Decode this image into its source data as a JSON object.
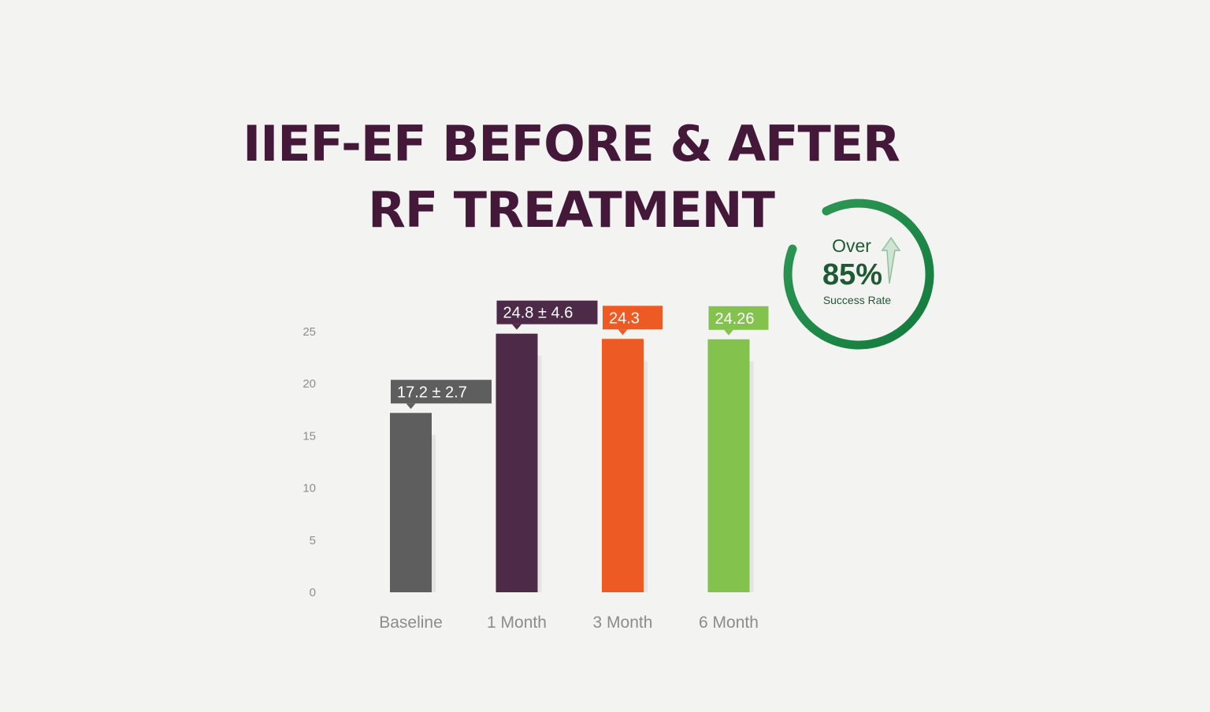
{
  "title_line1": "IIEF-EF BEFORE & AFTER",
  "title_line2": "RF TREATMENT",
  "badge": {
    "over": "Over",
    "percent": "85%",
    "caption": "Success Rate",
    "ring_color": "#1f8a4a",
    "arrow_icon": "up-arrow-icon"
  },
  "chart_data": {
    "type": "bar",
    "title": "IIEF-EF BEFORE & AFTER RF TREATMENT",
    "xlabel": "",
    "ylabel": "",
    "ylim": [
      0,
      25
    ],
    "yticks": [
      0,
      5,
      10,
      15,
      20,
      25
    ],
    "grid": false,
    "categories": [
      "Baseline",
      "1 Month",
      "3 Month",
      "6 Month"
    ],
    "values": [
      17.2,
      24.8,
      24.3,
      24.26
    ],
    "data_labels": [
      "17.2  ±  2.7",
      "24.8  ±  4.6",
      "24.3",
      "24.26"
    ],
    "colors": [
      "#5e5e5e",
      "#4d2a48",
      "#ee5a24",
      "#84c24e"
    ]
  }
}
